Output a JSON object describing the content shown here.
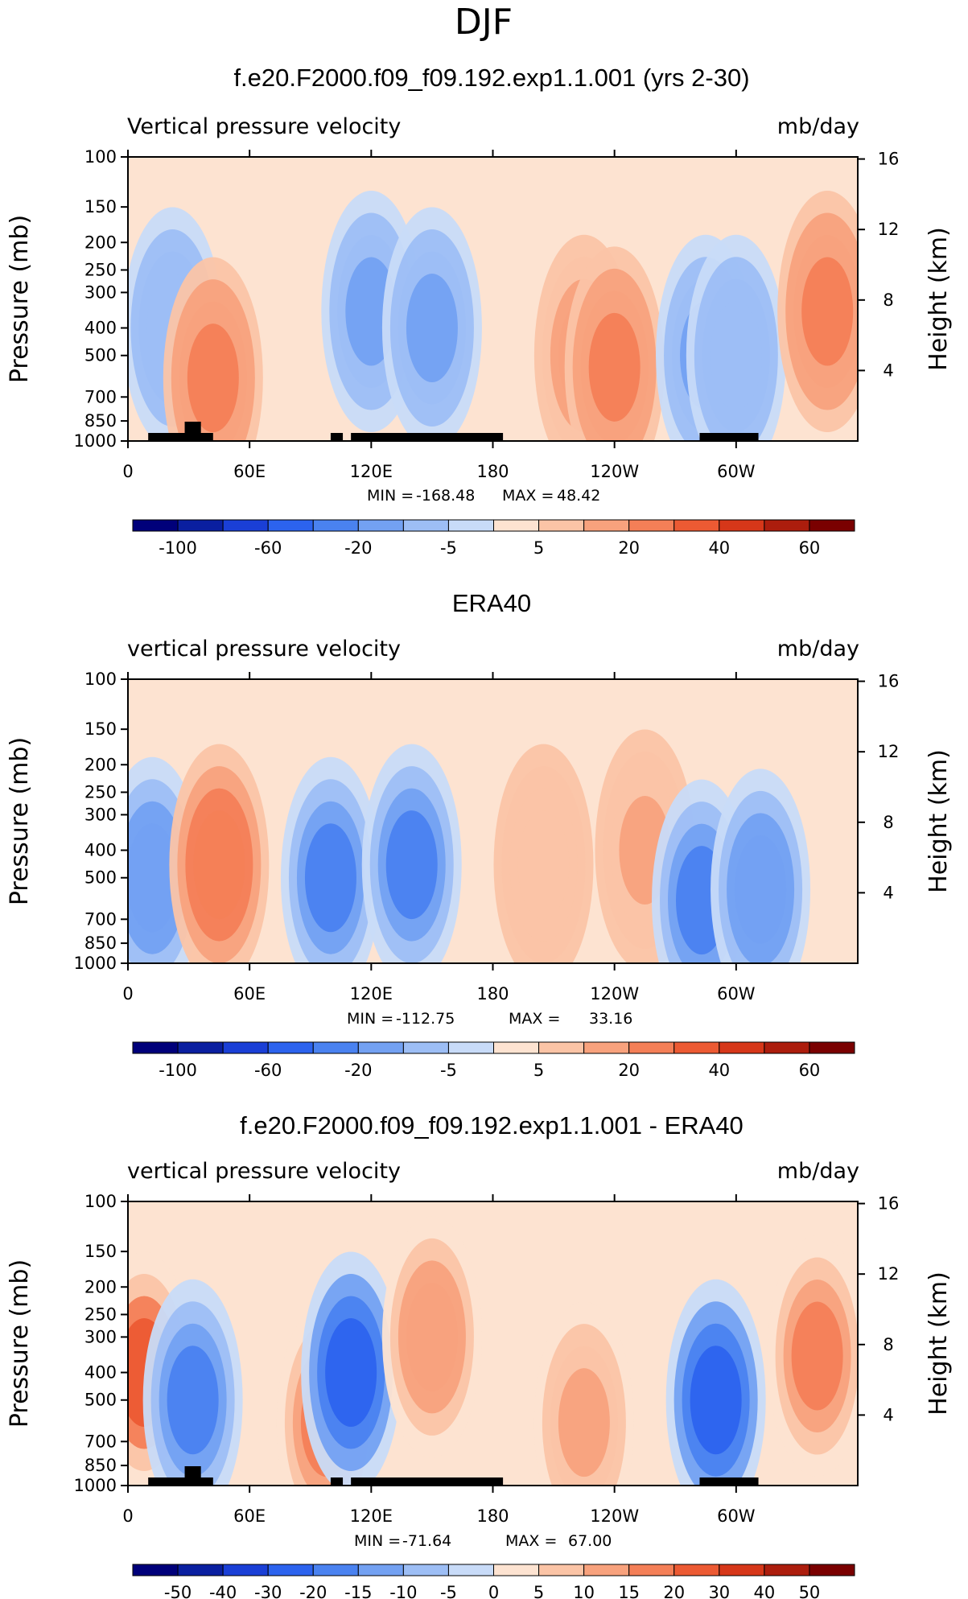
{
  "main_title": "DJF",
  "panels": [
    {
      "title": "f.e20.F2000.f09_f09.192.exp1.1.001 (yrs 2-30)",
      "left_label": "Vertical pressure velocity",
      "right_label": "mb/day",
      "stats": {
        "min_label": "MIN =",
        "min": "-168.48",
        "max_label": "MAX =",
        "max": "48.42"
      }
    },
    {
      "title": "ERA40",
      "left_label": "vertical pressure velocity",
      "right_label": "mb/day",
      "stats": {
        "min_label": "MIN =",
        "min": "-112.75",
        "max_label": "MAX =",
        "max": "33.16"
      }
    },
    {
      "title": "f.e20.F2000.f09_f09.192.exp1.1.001 - ERA40",
      "left_label": "vertical pressure velocity",
      "right_label": "mb/day",
      "stats": {
        "min_label": "MIN =",
        "min": "-71.64",
        "max_label": "MAX =",
        "max": "67.00"
      }
    }
  ],
  "chart_data": [
    {
      "type": "heatmap",
      "title": "f.e20.F2000.f09_f09.192.exp1.1.001 (yrs 2-30)",
      "variable": "Vertical pressure velocity",
      "units": "mb/day",
      "xlabel": "",
      "x_ticks": [
        "0",
        "60E",
        "120E",
        "180",
        "120W",
        "60W"
      ],
      "ylabel": "Pressure (mb)",
      "y_ticks": [
        "100",
        "150",
        "200",
        "250",
        "300",
        "400",
        "500",
        "700",
        "850",
        "1000"
      ],
      "y2label": "Height (km)",
      "y2_ticks": [
        "16",
        "12",
        "8",
        "4"
      ],
      "min": -168.48,
      "max": 48.42,
      "colorbar_labels": [
        "-100",
        "-60",
        "-20",
        "-5",
        "5",
        "20",
        "40",
        "60"
      ],
      "colorbar_label_bins": [
        1,
        3,
        5,
        7,
        9,
        11,
        13,
        15
      ],
      "bins": 16,
      "features": [
        {
          "lon": 22,
          "p": 400,
          "v": -40
        },
        {
          "lon": 42,
          "p": 600,
          "v": 30
        },
        {
          "lon": 120,
          "p": 350,
          "v": -60
        },
        {
          "lon": 150,
          "p": 400,
          "v": -55
        },
        {
          "lon": 225,
          "p": 500,
          "v": 20
        },
        {
          "lon": 240,
          "p": 550,
          "v": 30
        },
        {
          "lon": 285,
          "p": 500,
          "v": -55
        },
        {
          "lon": 300,
          "p": 500,
          "v": -45
        },
        {
          "lon": 345,
          "p": 350,
          "v": 30
        }
      ]
    },
    {
      "type": "heatmap",
      "title": "ERA40",
      "variable": "vertical pressure velocity",
      "units": "mb/day",
      "xlabel": "",
      "x_ticks": [
        "0",
        "60E",
        "120E",
        "180",
        "120W",
        "60W"
      ],
      "ylabel": "Pressure (mb)",
      "y_ticks": [
        "100",
        "150",
        "200",
        "250",
        "300",
        "400",
        "500",
        "700",
        "850",
        "1000"
      ],
      "y2label": "Height (km)",
      "y2_ticks": [
        "16",
        "12",
        "8",
        "4"
      ],
      "min": -112.75,
      "max": 33.16,
      "colorbar_labels": [
        "-100",
        "-60",
        "-20",
        "-5",
        "5",
        "20",
        "40",
        "60"
      ],
      "colorbar_label_bins": [
        1,
        3,
        5,
        7,
        9,
        11,
        13,
        15
      ],
      "bins": 16,
      "features": [
        {
          "lon": 12,
          "p": 500,
          "v": -45
        },
        {
          "lon": 45,
          "p": 450,
          "v": 20
        },
        {
          "lon": 100,
          "p": 500,
          "v": -55
        },
        {
          "lon": 140,
          "p": 450,
          "v": -55
        },
        {
          "lon": 205,
          "p": 450,
          "v": 8
        },
        {
          "lon": 255,
          "p": 400,
          "v": 10
        },
        {
          "lon": 283,
          "p": 600,
          "v": -60
        },
        {
          "lon": 312,
          "p": 550,
          "v": -50
        }
      ]
    },
    {
      "type": "heatmap",
      "title": "f.e20.F2000.f09_f09.192.exp1.1.001 - ERA40",
      "variable": "vertical pressure velocity",
      "units": "mb/day",
      "xlabel": "",
      "x_ticks": [
        "0",
        "60E",
        "120E",
        "180",
        "120W",
        "60W"
      ],
      "ylabel": "Pressure (mb)",
      "y_ticks": [
        "100",
        "150",
        "200",
        "250",
        "300",
        "400",
        "500",
        "700",
        "850",
        "1000"
      ],
      "y2label": "Height (km)",
      "y2_ticks": [
        "16",
        "12",
        "8",
        "4"
      ],
      "min": -71.64,
      "max": 67.0,
      "colorbar_labels": [
        "-50",
        "-40",
        "-30",
        "-20",
        "-15",
        "-10",
        "-5",
        "0",
        "5",
        "10",
        "15",
        "20",
        "30",
        "40",
        "50"
      ],
      "colorbar_label_bins": [
        1,
        2,
        3,
        4,
        5,
        6,
        7,
        8,
        9,
        10,
        11,
        12,
        13,
        14,
        15
      ],
      "bins": 16,
      "features": [
        {
          "lon": 8,
          "p": 400,
          "v": 45
        },
        {
          "lon": 32,
          "p": 500,
          "v": -40
        },
        {
          "lon": 98,
          "p": 600,
          "v": 40
        },
        {
          "lon": 110,
          "p": 400,
          "v": -50
        },
        {
          "lon": 150,
          "p": 300,
          "v": 30
        },
        {
          "lon": 225,
          "p": 600,
          "v": 20
        },
        {
          "lon": 290,
          "p": 500,
          "v": -50
        },
        {
          "lon": 340,
          "p": 350,
          "v": 35
        }
      ]
    }
  ],
  "colormap": [
    "#00007a",
    "#0a1fa0",
    "#1a3fd6",
    "#2c63ee",
    "#4a82f0",
    "#73a1f2",
    "#9dbef5",
    "#c8dbf8",
    "#fde3d1",
    "#fbc4a6",
    "#f8a27d",
    "#f47f57",
    "#ec5a33",
    "#d63719",
    "#ac1d0d",
    "#7a0000"
  ]
}
